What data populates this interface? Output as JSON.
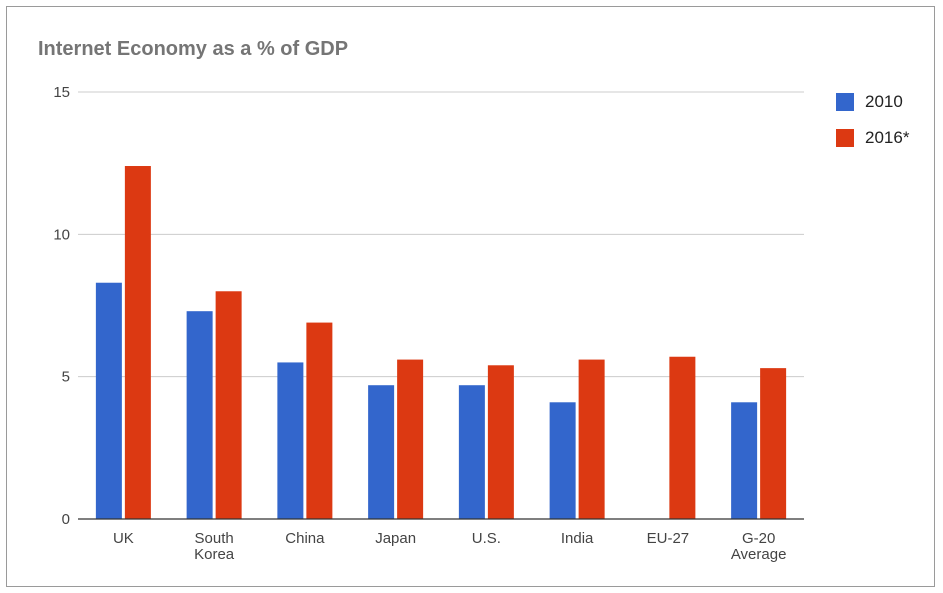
{
  "chart_data": {
    "type": "bar",
    "title": "Internet Economy as a % of GDP",
    "xlabel": "",
    "ylabel": "",
    "categories": [
      "UK",
      "South Korea",
      "China",
      "Japan",
      "U.S.",
      "India",
      "EU-27",
      "G-20 Average"
    ],
    "category_lines": [
      [
        "UK"
      ],
      [
        "South",
        "Korea"
      ],
      [
        "China"
      ],
      [
        "Japan"
      ],
      [
        "U.S."
      ],
      [
        "India"
      ],
      [
        "EU-27"
      ],
      [
        "G-20",
        "Average"
      ]
    ],
    "series": [
      {
        "name": "2010",
        "color": "#3366cc",
        "values": [
          8.3,
          7.3,
          5.5,
          4.7,
          4.7,
          4.1,
          null,
          4.1
        ]
      },
      {
        "name": "2016*",
        "color": "#dc3912",
        "values": [
          12.4,
          8.0,
          6.9,
          5.6,
          5.4,
          5.6,
          5.7,
          5.3
        ]
      }
    ],
    "ylim": [
      0,
      15
    ],
    "yticks": [
      0,
      5,
      10,
      15
    ],
    "grid": true,
    "legend_position": "right"
  }
}
